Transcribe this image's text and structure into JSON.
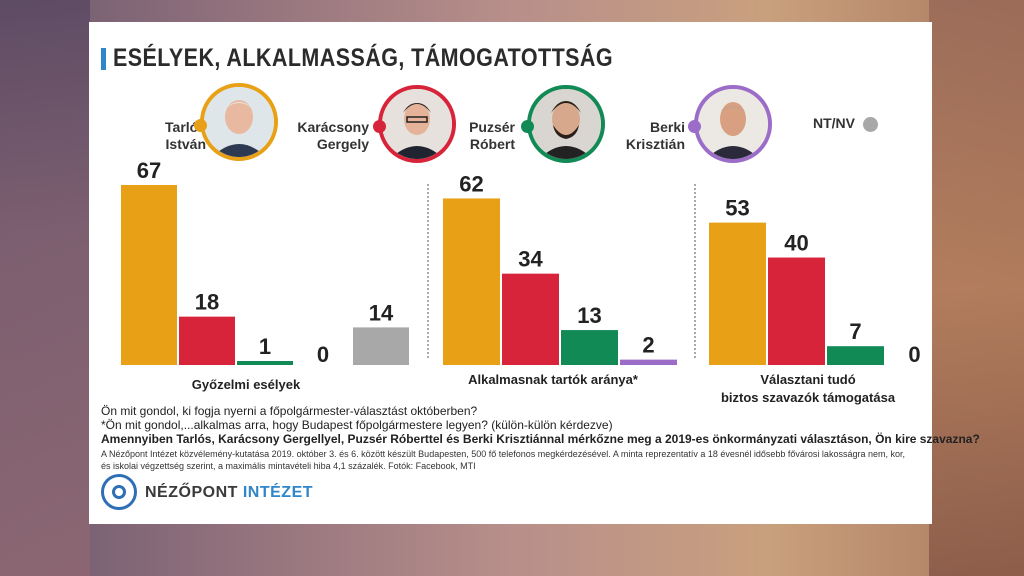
{
  "title": "ESÉLYEK, ALKALMASSÁG, TÁMOGATOTTSÁG",
  "candidates": [
    {
      "name_line1": "Tarlós",
      "name_line2": "István",
      "color": "#e8a117",
      "photo_name": "tarlos-photo"
    },
    {
      "name_line1": "Karácsony",
      "name_line2": "Gergely",
      "color": "#d8243b",
      "photo_name": "karacsony-photo"
    },
    {
      "name_line1": "Puzsér",
      "name_line2": "Róbert",
      "color": "#118a55",
      "photo_name": "puzser-photo"
    },
    {
      "name_line1": "Berki",
      "name_line2": "Krisztián",
      "color": "#9b6cc8",
      "photo_name": "berki-photo"
    }
  ],
  "ntnv": {
    "label": "NT/NV",
    "color": "#a8a8a8"
  },
  "chart_data": [
    {
      "type": "bar",
      "categories": [
        "Tarlós István",
        "Karácsony Gergely",
        "Puzsér Róbert",
        "Berki Krisztián",
        "NT/NV"
      ],
      "values": [
        67,
        18,
        1,
        0,
        14
      ],
      "title": "Győzelmi esélyek",
      "colors": [
        "#e8a117",
        "#d8243b",
        "#118a55",
        "#9b6cc8",
        "#a8a8a8"
      ]
    },
    {
      "type": "bar",
      "categories": [
        "Tarlós István",
        "Karácsony Gergely",
        "Puzsér Róbert",
        "Berki Krisztián"
      ],
      "values": [
        62,
        34,
        13,
        2
      ],
      "title": "Alkalmasnak tartók aránya*",
      "colors": [
        "#e8a117",
        "#d8243b",
        "#118a55",
        "#9b6cc8"
      ]
    },
    {
      "type": "bar",
      "categories": [
        "Tarlós István",
        "Karácsony Gergely",
        "Puzsér Róbert",
        "Berki Krisztián"
      ],
      "values": [
        53,
        40,
        7,
        0
      ],
      "title": "Választani tudó biztos szavazók támogatása",
      "title_line1": "Választani tudó",
      "title_line2": "biztos szavazók támogatása",
      "colors": [
        "#e8a117",
        "#d8243b",
        "#118a55",
        "#9b6cc8"
      ]
    }
  ],
  "questions": {
    "q1": "Ön mit gondol, ki fogja nyerni a főpolgármester-választást októberben?",
    "q2": "*Ön mit gondol,...alkalmas arra, hogy Budapest főpolgármestere legyen? (külön-külön kérdezve)",
    "q3": "Amennyiben Tarlós, Karácsony Gergellyel, Puzsér Róberttel és Berki Krisztiánnal mérkőzne meg a 2019-es önkormányzati választáson, Ön kire szavazna?"
  },
  "methodology": {
    "line1": "A Nézőpont Intézet közvélemény-kutatása 2019. október 3. és 6. között készült Budapesten, 500 fő telefonos megkérdezésével. A minta reprezentatív a 18 évesnél idősebb fővárosi lakosságra nem, kor,",
    "line2": "és iskolai végzettség szerint, a maximális mintavételi hiba 4,1 százalék. Fotók: Facebook, MTI"
  },
  "logo": {
    "word1": "NÉZŐPONT",
    "word2": "INTÉZET",
    "icon": "nezopont-logo-icon"
  }
}
